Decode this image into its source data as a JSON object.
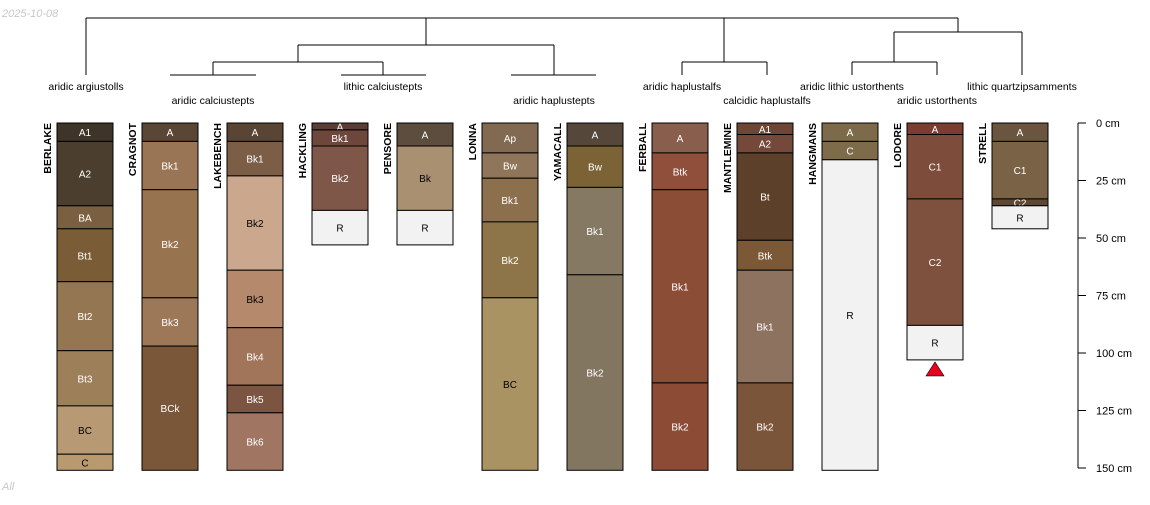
{
  "header": {
    "date": "2025-10-08"
  },
  "footer": {
    "note": "All"
  },
  "depth_axis": {
    "unit": "cm",
    "ticks": [
      {
        "depth": 0,
        "label": "0 cm"
      },
      {
        "depth": 25,
        "label": "25 cm"
      },
      {
        "depth": 50,
        "label": "50 cm"
      },
      {
        "depth": 75,
        "label": "75 cm"
      },
      {
        "depth": 100,
        "label": "100 cm"
      },
      {
        "depth": 125,
        "label": "125 cm"
      },
      {
        "depth": 150,
        "label": "150 cm"
      }
    ]
  },
  "profiles": [
    {
      "id": "BERLAKE",
      "horizons": [
        {
          "name": "A1",
          "top": 0,
          "bottom": 8,
          "color": "#3f3428",
          "text_color": "#ffffff"
        },
        {
          "name": "A2",
          "top": 8,
          "bottom": 36,
          "color": "#4b3e2f",
          "text_color": "#ffffff"
        },
        {
          "name": "BA",
          "top": 36,
          "bottom": 46,
          "color": "#7a5f40",
          "text_color": "#ffffff"
        },
        {
          "name": "Bt1",
          "top": 46,
          "bottom": 69,
          "color": "#7a5c37",
          "text_color": "#ffffff"
        },
        {
          "name": "Bt2",
          "top": 69,
          "bottom": 99,
          "color": "#947653",
          "text_color": "#ffffff"
        },
        {
          "name": "Bt3",
          "top": 99,
          "bottom": 123,
          "color": "#9d7f5a",
          "text_color": "#ffffff"
        },
        {
          "name": "BC",
          "top": 123,
          "bottom": 144,
          "color": "#b79a73",
          "text_color": "#000000"
        },
        {
          "name": "C",
          "top": 144,
          "bottom": 151,
          "color": "#b99a70",
          "text_color": "#000000"
        }
      ]
    },
    {
      "id": "CRAGNOT",
      "horizons": [
        {
          "name": "A",
          "top": 0,
          "bottom": 8,
          "color": "#5a4634",
          "text_color": "#ffffff"
        },
        {
          "name": "Bk1",
          "top": 8,
          "bottom": 29,
          "color": "#9a7555",
          "text_color": "#ffffff"
        },
        {
          "name": "Bk2",
          "top": 29,
          "bottom": 76,
          "color": "#98734f",
          "text_color": "#ffffff"
        },
        {
          "name": "Bk3",
          "top": 76,
          "bottom": 97,
          "color": "#9c7758",
          "text_color": "#ffffff"
        },
        {
          "name": "BCk",
          "top": 97,
          "bottom": 151,
          "color": "#7b573a",
          "text_color": "#ffffff"
        }
      ]
    },
    {
      "id": "LAKEBENCH",
      "horizons": [
        {
          "name": "A",
          "top": 0,
          "bottom": 8,
          "color": "#5a4434",
          "text_color": "#ffffff"
        },
        {
          "name": "Bk1",
          "top": 8,
          "bottom": 23,
          "color": "#7c5d45",
          "text_color": "#ffffff"
        },
        {
          "name": "Bk2",
          "top": 23,
          "bottom": 64,
          "color": "#cba88d",
          "text_color": "#000000"
        },
        {
          "name": "Bk3",
          "top": 64,
          "bottom": 89,
          "color": "#b58a6c",
          "text_color": "#000000"
        },
        {
          "name": "Bk4",
          "top": 89,
          "bottom": 114,
          "color": "#a17559",
          "text_color": "#ffffff"
        },
        {
          "name": "Bk5",
          "top": 114,
          "bottom": 126,
          "color": "#7b5542",
          "text_color": "#ffffff"
        },
        {
          "name": "Bk6",
          "top": 126,
          "bottom": 151,
          "color": "#a07662",
          "text_color": "#ffffff"
        }
      ]
    },
    {
      "id": "HACKLING",
      "horizons": [
        {
          "name": "A",
          "top": 0,
          "bottom": 3,
          "color": "#5a3e36",
          "text_color": "#ffffff"
        },
        {
          "name": "Bk1",
          "top": 3,
          "bottom": 10,
          "color": "#6e473c",
          "text_color": "#ffffff"
        },
        {
          "name": "Bk2",
          "top": 10,
          "bottom": 38,
          "color": "#7e5748",
          "text_color": "#ffffff"
        },
        {
          "name": "R",
          "top": 38,
          "bottom": 53,
          "color": "#f2f2f2",
          "text_color": "#000000"
        }
      ]
    },
    {
      "id": "PENSORE",
      "horizons": [
        {
          "name": "A",
          "top": 0,
          "bottom": 10,
          "color": "#5d4d3e",
          "text_color": "#ffffff"
        },
        {
          "name": "Bk",
          "top": 10,
          "bottom": 38,
          "color": "#a89070",
          "text_color": "#000000"
        },
        {
          "name": "R",
          "top": 38,
          "bottom": 53,
          "color": "#f2f2f2",
          "text_color": "#000000"
        }
      ]
    },
    {
      "id": "LONNA",
      "horizons": [
        {
          "name": "Ap",
          "top": 0,
          "bottom": 13,
          "color": "#826a52",
          "text_color": "#ffffff"
        },
        {
          "name": "Bw",
          "top": 13,
          "bottom": 24,
          "color": "#8f7559",
          "text_color": "#ffffff"
        },
        {
          "name": "Bk1",
          "top": 24,
          "bottom": 43,
          "color": "#8c6f4c",
          "text_color": "#ffffff"
        },
        {
          "name": "Bk2",
          "top": 43,
          "bottom": 76,
          "color": "#8e7549",
          "text_color": "#ffffff"
        },
        {
          "name": "BC",
          "top": 76,
          "bottom": 151,
          "color": "#aa9362",
          "text_color": "#000000"
        }
      ]
    },
    {
      "id": "YAMACALL",
      "horizons": [
        {
          "name": "A",
          "top": 0,
          "bottom": 10,
          "color": "#55473a",
          "text_color": "#ffffff"
        },
        {
          "name": "Bw",
          "top": 10,
          "bottom": 28,
          "color": "#7b6335",
          "text_color": "#ffffff"
        },
        {
          "name": "Bk1",
          "top": 28,
          "bottom": 66,
          "color": "#857964",
          "text_color": "#ffffff"
        },
        {
          "name": "Bk2",
          "top": 66,
          "bottom": 151,
          "color": "#827660",
          "text_color": "#ffffff"
        }
      ]
    },
    {
      "id": "FERBALL",
      "horizons": [
        {
          "name": "A",
          "top": 0,
          "bottom": 13,
          "color": "#8a5e4c",
          "text_color": "#ffffff"
        },
        {
          "name": "Btk",
          "top": 13,
          "bottom": 29,
          "color": "#8f4f3b",
          "text_color": "#ffffff"
        },
        {
          "name": "Bk1",
          "top": 29,
          "bottom": 113,
          "color": "#8b4d36",
          "text_color": "#ffffff"
        },
        {
          "name": "Bk2",
          "top": 113,
          "bottom": 151,
          "color": "#8c4b35",
          "text_color": "#ffffff"
        }
      ]
    },
    {
      "id": "MANTLEMINE",
      "horizons": [
        {
          "name": "A1",
          "top": 0,
          "bottom": 5,
          "color": "#6d4635",
          "text_color": "#ffffff"
        },
        {
          "name": "A2",
          "top": 5,
          "bottom": 13,
          "color": "#74493a",
          "text_color": "#ffffff"
        },
        {
          "name": "Bt",
          "top": 13,
          "bottom": 51,
          "color": "#5d4029",
          "text_color": "#ffffff"
        },
        {
          "name": "Btk",
          "top": 51,
          "bottom": 64,
          "color": "#7b5836",
          "text_color": "#ffffff"
        },
        {
          "name": "Bk1",
          "top": 64,
          "bottom": 113,
          "color": "#8e7260",
          "text_color": "#ffffff"
        },
        {
          "name": "Bk2",
          "top": 113,
          "bottom": 151,
          "color": "#7a5539",
          "text_color": "#ffffff"
        }
      ]
    },
    {
      "id": "HANGMANS",
      "horizons": [
        {
          "name": "A",
          "top": 0,
          "bottom": 8,
          "color": "#7c6a4a",
          "text_color": "#ffffff"
        },
        {
          "name": "C",
          "top": 8,
          "bottom": 16,
          "color": "#7e6b4a",
          "text_color": "#ffffff"
        },
        {
          "name": "R",
          "top": 16,
          "bottom": 151,
          "color": "#f2f2f2",
          "text_color": "#000000"
        }
      ]
    },
    {
      "id": "LODORE",
      "truncated": true,
      "horizons": [
        {
          "name": "A",
          "top": 0,
          "bottom": 5,
          "color": "#7a3d30",
          "text_color": "#ffffff"
        },
        {
          "name": "C1",
          "top": 5,
          "bottom": 33,
          "color": "#7d4c3a",
          "text_color": "#ffffff"
        },
        {
          "name": "C2",
          "top": 33,
          "bottom": 88,
          "color": "#7e513f",
          "text_color": "#ffffff"
        },
        {
          "name": "R",
          "top": 88,
          "bottom": 103,
          "color": "#f2f2f2",
          "text_color": "#000000"
        }
      ]
    },
    {
      "id": "STRELL",
      "horizons": [
        {
          "name": "A",
          "top": 0,
          "bottom": 8,
          "color": "#6b5540",
          "text_color": "#ffffff"
        },
        {
          "name": "C1",
          "top": 8,
          "bottom": 33,
          "color": "#7a6247",
          "text_color": "#ffffff"
        },
        {
          "name": "C2",
          "top": 33,
          "bottom": 36,
          "color": "#5e4834",
          "text_color": "#ffffff"
        },
        {
          "name": "R",
          "top": 36,
          "bottom": 46,
          "color": "#f2f2f2",
          "text_color": "#000000"
        }
      ]
    }
  ],
  "taxa": [
    {
      "name": "aridic argiustolls",
      "profiles": [
        "BERLAKE"
      ]
    },
    {
      "name": "aridic calciustepts",
      "profiles": [
        "CRAGNOT",
        "LAKEBENCH"
      ]
    },
    {
      "name": "lithic calciustepts",
      "profiles": [
        "HACKLING",
        "PENSORE"
      ]
    },
    {
      "name": "aridic haplustepts",
      "profiles": [
        "LONNA",
        "YAMACALL"
      ]
    },
    {
      "name": "aridic haplustalfs",
      "profiles": [
        "FERBALL"
      ]
    },
    {
      "name": "calcidic haplustalfs",
      "profiles": [
        "MANTLEMINE"
      ]
    },
    {
      "name": "aridic lithic ustorthents",
      "profiles": [
        "HANGMANS"
      ]
    },
    {
      "name": "aridic ustorthents",
      "profiles": [
        "LODORE"
      ]
    },
    {
      "name": "lithic quartzipsamments",
      "profiles": [
        "STRELL"
      ]
    }
  ],
  "colors": {
    "tree_line": "#000000",
    "horizon_border": "#000000",
    "axis": "#000000",
    "truncation_marker": "#e8001c"
  }
}
